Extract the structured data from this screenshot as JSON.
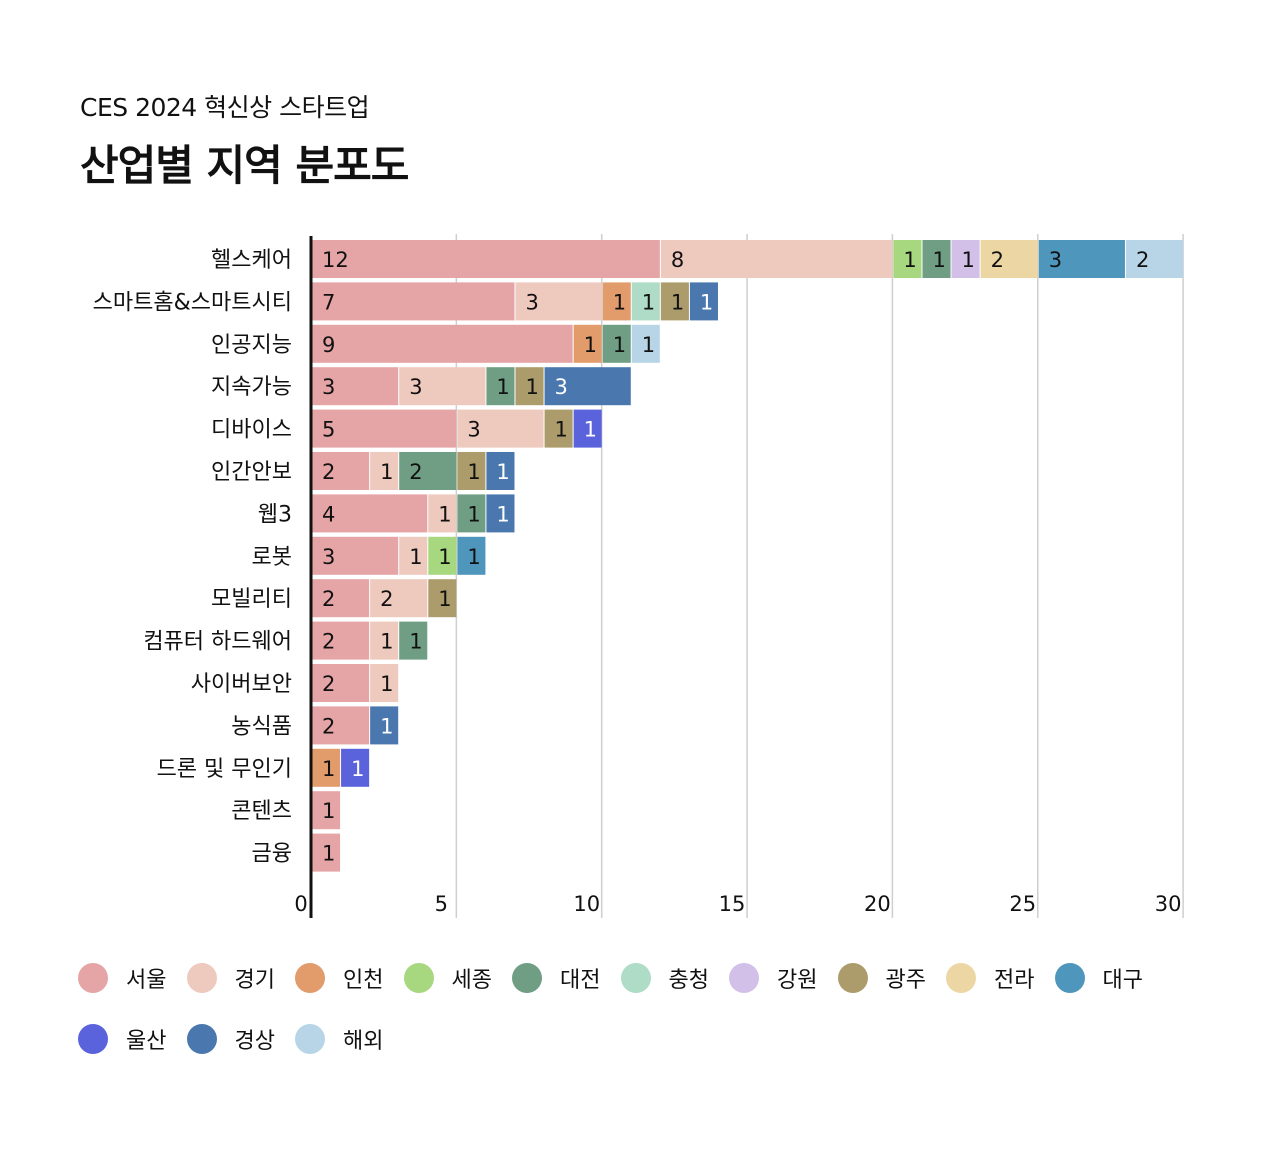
{
  "subtitle": "CES 2024 혁신상 스타트업",
  "title": "산업별 지역 분포도",
  "chart_data": {
    "type": "bar",
    "orientation": "horizontal",
    "stacked": true,
    "xlim": [
      0,
      30
    ],
    "xticks": [
      "0",
      "5",
      "10",
      "15",
      "20",
      "25",
      "30"
    ],
    "grid": true,
    "legend_position": "bottom",
    "categories": [
      "헬스케어",
      "스마트홈&스마트시티",
      "인공지능",
      "지속가능",
      "디바이스",
      "인간안보",
      "웹3",
      "로봇",
      "모빌리티",
      "컴퓨터 하드웨어",
      "사이버보안",
      "농식품",
      "드론 및 무인기",
      "콘텐츠",
      "금융"
    ],
    "series": [
      {
        "name": "서울",
        "color": "#e5a4a6",
        "values": [
          12,
          7,
          9,
          3,
          5,
          2,
          4,
          3,
          2,
          2,
          2,
          2,
          0,
          1,
          1
        ]
      },
      {
        "name": "경기",
        "color": "#eec9be",
        "values": [
          8,
          3,
          0,
          3,
          3,
          1,
          1,
          1,
          2,
          1,
          1,
          0,
          0,
          0,
          0
        ]
      },
      {
        "name": "인천",
        "color": "#e29c6b",
        "values": [
          0,
          1,
          1,
          0,
          0,
          0,
          0,
          0,
          0,
          0,
          0,
          0,
          1,
          0,
          0
        ]
      },
      {
        "name": "세종",
        "color": "#a7d77e",
        "values": [
          1,
          0,
          0,
          0,
          0,
          0,
          0,
          1,
          0,
          0,
          0,
          0,
          0,
          0,
          0
        ]
      },
      {
        "name": "대전",
        "color": "#6f9e84",
        "values": [
          1,
          0,
          1,
          1,
          0,
          2,
          1,
          0,
          0,
          1,
          0,
          0,
          0,
          0,
          0
        ]
      },
      {
        "name": "충청",
        "color": "#aedcc6",
        "values": [
          0,
          1,
          0,
          0,
          0,
          0,
          0,
          0,
          0,
          0,
          0,
          0,
          0,
          0,
          0
        ]
      },
      {
        "name": "강원",
        "color": "#d3c0e8",
        "values": [
          1,
          0,
          0,
          0,
          0,
          0,
          0,
          0,
          0,
          0,
          0,
          0,
          0,
          0,
          0
        ]
      },
      {
        "name": "광주",
        "color": "#ac9c6c",
        "values": [
          0,
          1,
          0,
          1,
          1,
          1,
          0,
          0,
          1,
          0,
          0,
          0,
          0,
          0,
          0
        ]
      },
      {
        "name": "전라",
        "color": "#ecd7a4",
        "values": [
          2,
          0,
          0,
          0,
          0,
          0,
          0,
          0,
          0,
          0,
          0,
          0,
          0,
          0,
          0
        ]
      },
      {
        "name": "대구",
        "color": "#4f96bd",
        "values": [
          3,
          0,
          0,
          0,
          0,
          0,
          0,
          1,
          0,
          0,
          0,
          0,
          0,
          0,
          0
        ]
      },
      {
        "name": "울산",
        "color": "#5a62dc",
        "values": [
          0,
          0,
          0,
          0,
          1,
          0,
          0,
          0,
          0,
          0,
          0,
          0,
          1,
          0,
          0
        ]
      },
      {
        "name": "경상",
        "color": "#4a77ae",
        "values": [
          0,
          1,
          0,
          3,
          0,
          1,
          1,
          0,
          0,
          0,
          0,
          1,
          0,
          0,
          0
        ]
      },
      {
        "name": "해외",
        "color": "#b8d5e8",
        "values": [
          2,
          0,
          1,
          0,
          0,
          0,
          0,
          0,
          0,
          0,
          0,
          0,
          0,
          0,
          0
        ]
      }
    ]
  }
}
